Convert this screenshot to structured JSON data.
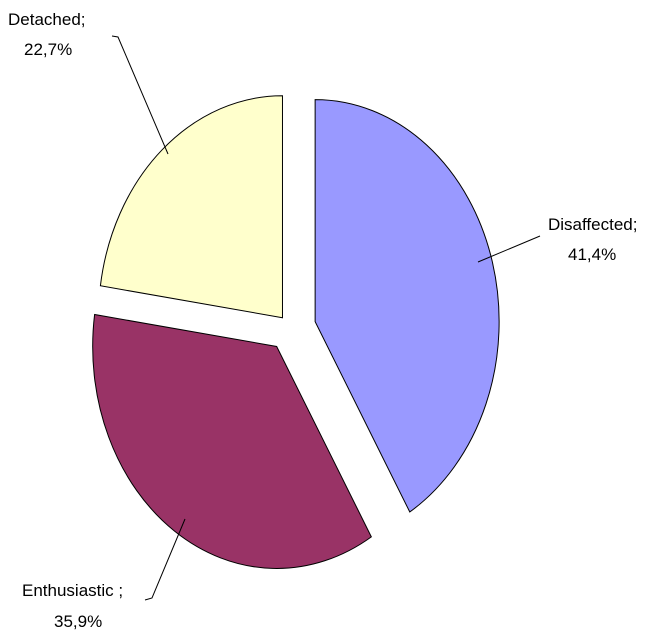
{
  "chart_data": {
    "type": "pie",
    "exploded": true,
    "legend": "none",
    "slices": [
      {
        "label": "Disaffected;",
        "value": 41.4,
        "value_label": "41,4%",
        "color": "#9999ff"
      },
      {
        "label": "Enthusiastic ;",
        "value": 35.9,
        "value_label": "35,9%",
        "color": "#993366"
      },
      {
        "label": "Detached;",
        "value": 22.7,
        "value_label": "22,7%",
        "color": "#ffffcc"
      }
    ]
  }
}
